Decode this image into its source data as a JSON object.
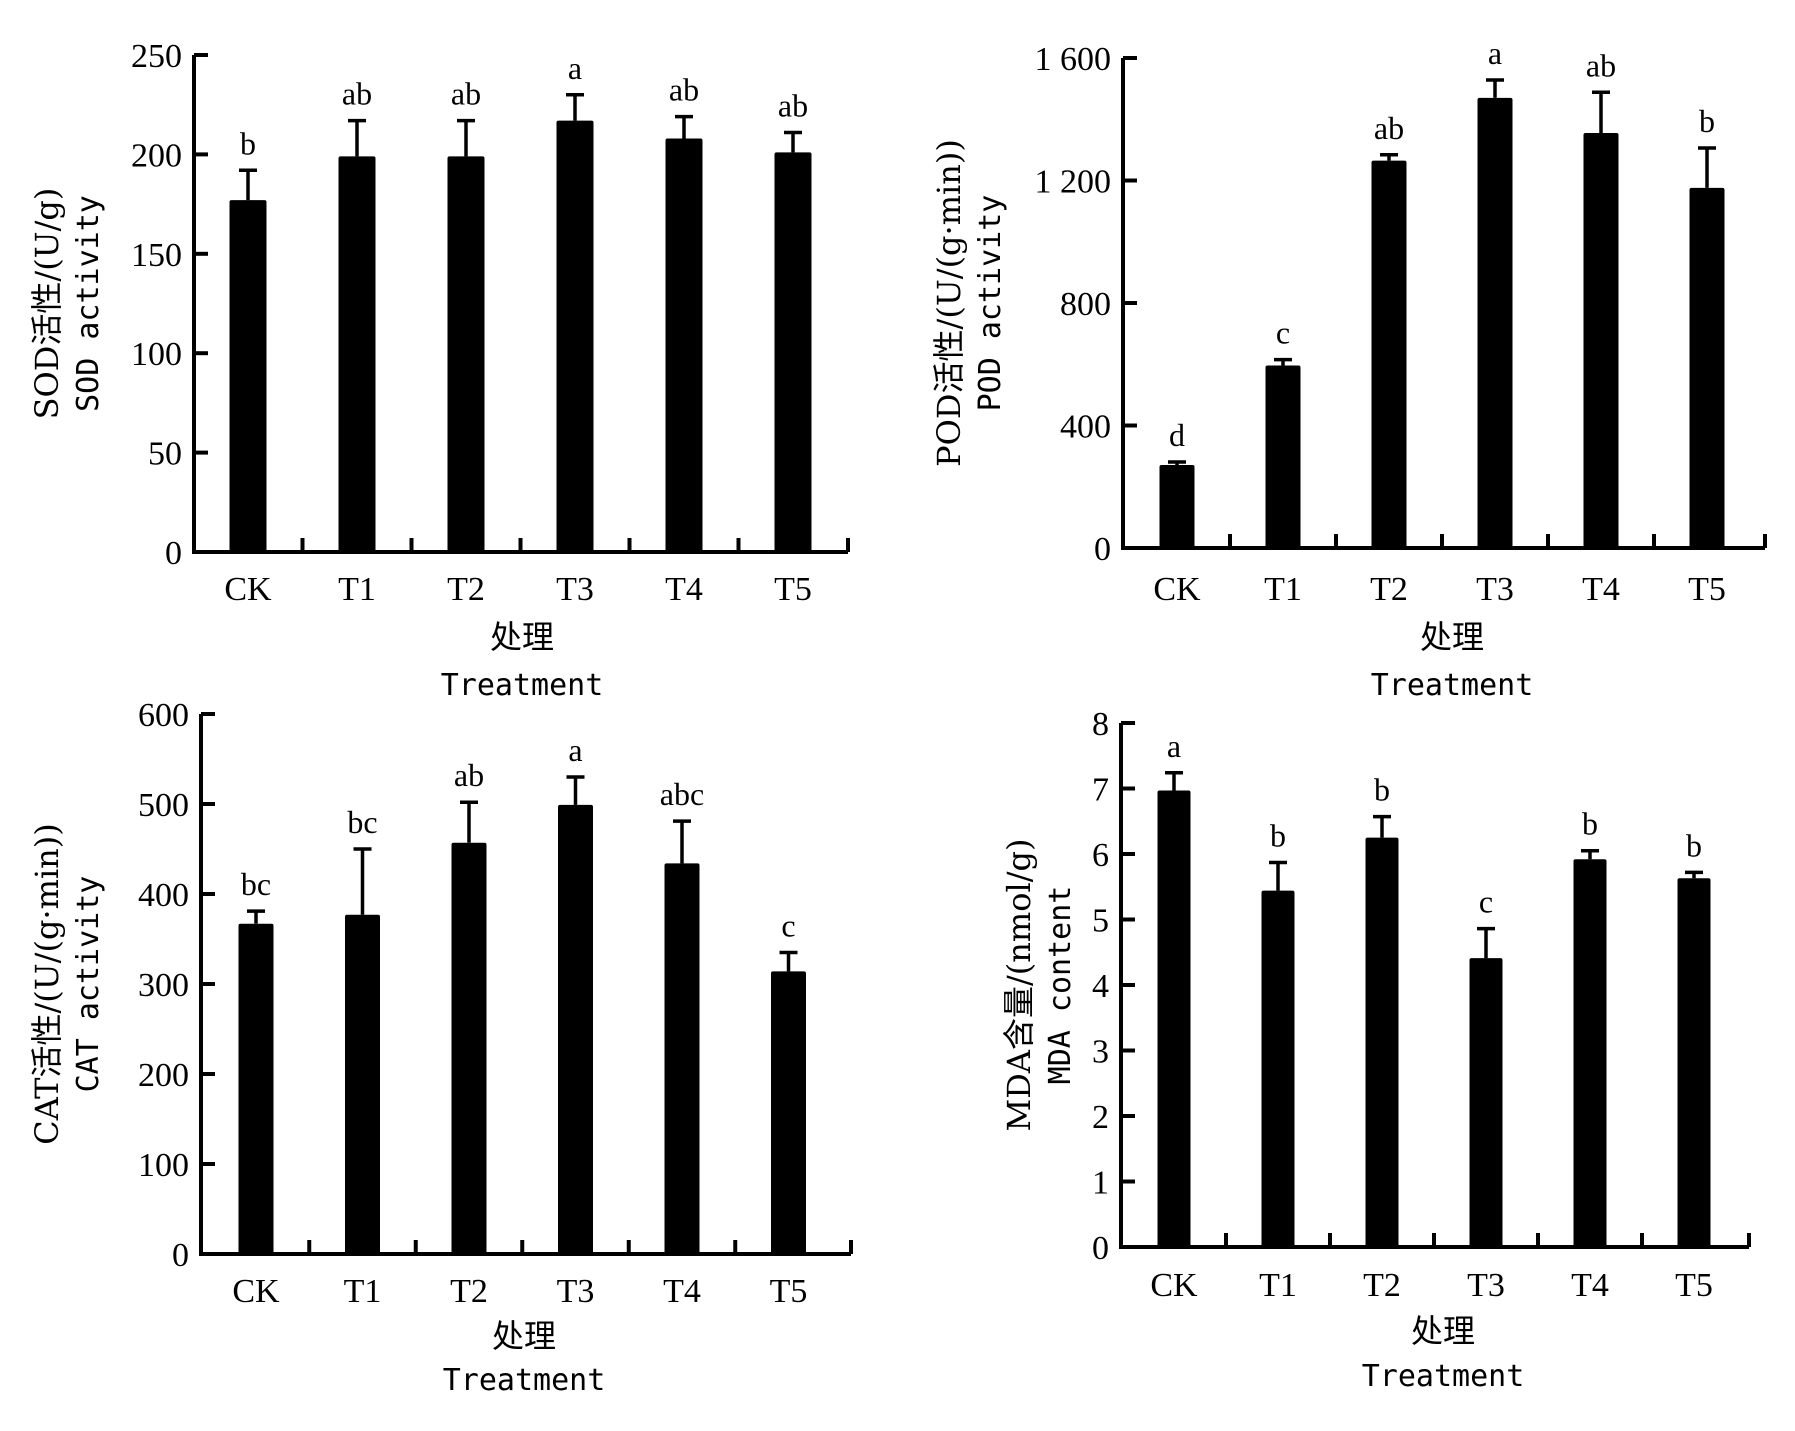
{
  "chart_data": [
    {
      "id": "sod",
      "type": "bar",
      "categories": [
        "CK",
        "T1",
        "T2",
        "T3",
        "T4",
        "T5"
      ],
      "values": [
        177,
        199,
        199,
        217,
        208,
        201
      ],
      "error_upper": [
        192,
        217,
        217,
        230,
        219,
        211
      ],
      "significance": [
        "b",
        "ab",
        "ab",
        "a",
        "ab",
        "ab"
      ],
      "ylabel_cn": "SOD活性/(U/g)",
      "ylabel_en": "SOD activity",
      "xlabel_cn": "处理",
      "xlabel_en": "Treatment",
      "ylim": [
        0,
        250
      ],
      "yticks": [
        0,
        50,
        100,
        150,
        200,
        250
      ],
      "ytick_labels": [
        "0",
        "50",
        "100",
        "150",
        "200",
        "250"
      ],
      "grid": false
    },
    {
      "id": "pod",
      "type": "bar",
      "categories": [
        "CK",
        "T1",
        "T2",
        "T3",
        "T4",
        "T5"
      ],
      "values": [
        271,
        596,
        1265,
        1470,
        1355,
        1176
      ],
      "error_upper": [
        281,
        615,
        1284,
        1528,
        1488,
        1306
      ],
      "significance": [
        "d",
        "c",
        "ab",
        "a",
        "ab",
        "b"
      ],
      "ylabel_cn": "POD活性/(U/(g·min))",
      "ylabel_en": "POD activity",
      "xlabel_cn": "处理",
      "xlabel_en": "Treatment",
      "ylim": [
        0,
        1600
      ],
      "yticks": [
        0,
        400,
        800,
        1200,
        1600
      ],
      "ytick_labels": [
        "0",
        "400",
        "800",
        "1 200",
        "1 600"
      ],
      "grid": false
    },
    {
      "id": "cat",
      "type": "bar",
      "categories": [
        "CK",
        "T1",
        "T2",
        "T3",
        "T4",
        "T5"
      ],
      "values": [
        367,
        377,
        457,
        499,
        434,
        314
      ],
      "error_upper": [
        381,
        450,
        502,
        530,
        481,
        335
      ],
      "significance": [
        "bc",
        "bc",
        "ab",
        "a",
        "abc",
        "c"
      ],
      "ylabel_cn": "CAT活性/(U/(g·min))",
      "ylabel_en": "CAT activity",
      "xlabel_cn": "处理",
      "xlabel_en": "Treatment",
      "ylim": [
        0,
        600
      ],
      "yticks": [
        0,
        100,
        200,
        300,
        400,
        500,
        600
      ],
      "ytick_labels": [
        "0",
        "100",
        "200",
        "300",
        "400",
        "500",
        "600"
      ],
      "grid": false
    },
    {
      "id": "mda",
      "type": "bar",
      "categories": [
        "CK",
        "T1",
        "T2",
        "T3",
        "T4",
        "T5"
      ],
      "values": [
        6.97,
        5.44,
        6.25,
        4.41,
        5.92,
        5.63
      ],
      "error_upper": [
        7.24,
        5.87,
        6.57,
        4.86,
        6.05,
        5.72
      ],
      "significance": [
        "a",
        "b",
        "b",
        "c",
        "b",
        "b"
      ],
      "ylabel_cn": "MDA含量/(nmol/g)",
      "ylabel_en": "MDA content",
      "xlabel_cn": "处理",
      "xlabel_en": "Treatment",
      "ylim": [
        0,
        8
      ],
      "yticks": [
        0,
        1,
        2,
        3,
        4,
        5,
        6,
        7,
        8
      ],
      "ytick_labels": [
        "0",
        "1",
        "2",
        "3",
        "4",
        "5",
        "6",
        "7",
        "8"
      ],
      "grid": false
    }
  ]
}
